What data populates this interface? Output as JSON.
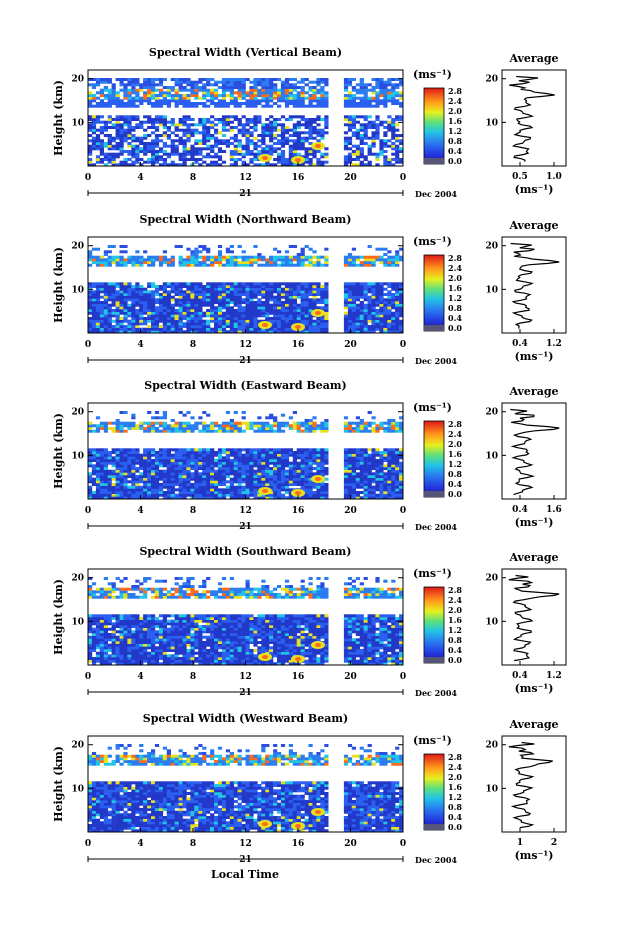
{
  "figure": {
    "xaxis_title": "Local Time",
    "date_label": "Dec 2004",
    "day_label": "21",
    "height_label": "Height (km)",
    "unit_label": "(ms⁻¹)",
    "avg_title": "Average",
    "avg_xlabel": "(ms⁻¹)"
  },
  "chart_data": [
    {
      "type": "heatmap",
      "title": "Spectral Width (Vertical Beam)",
      "xlabel": "Local Time",
      "ylabel": "Height (km)",
      "xticks": [
        "0",
        "4",
        "8",
        "12",
        "16",
        "20",
        "0"
      ],
      "yticks": [
        "20",
        "10"
      ],
      "colorbar_ticks": [
        "2.8",
        "2.4",
        "2.0",
        "1.6",
        "1.2",
        "0.8",
        "0.4",
        "0.0"
      ],
      "avg_xticks": [
        "0.5",
        "1.0"
      ]
    },
    {
      "type": "heatmap",
      "title": "Spectral Width (Northward Beam)",
      "xlabel": "Local Time",
      "ylabel": "Height (km)",
      "xticks": [
        "0",
        "4",
        "8",
        "12",
        "16",
        "20",
        "0"
      ],
      "yticks": [
        "20",
        "10"
      ],
      "colorbar_ticks": [
        "2.8",
        "2.4",
        "2.0",
        "1.6",
        "1.2",
        "0.8",
        "0.4",
        "0.0"
      ],
      "avg_xticks": [
        "0.4",
        "1.2"
      ]
    },
    {
      "type": "heatmap",
      "title": "Spectral Width (Eastward Beam)",
      "xlabel": "Local Time",
      "ylabel": "Height (km)",
      "xticks": [
        "0",
        "4",
        "8",
        "12",
        "16",
        "20",
        "0"
      ],
      "yticks": [
        "20",
        "10"
      ],
      "colorbar_ticks": [
        "2.8",
        "2.4",
        "2.0",
        "1.6",
        "1.2",
        "0.8",
        "0.4",
        "0.0"
      ],
      "avg_xticks": [
        "0.4",
        "1.6"
      ]
    },
    {
      "type": "heatmap",
      "title": "Spectral Width (Southward Beam)",
      "xlabel": "Local Time",
      "ylabel": "Height (km)",
      "xticks": [
        "0",
        "4",
        "8",
        "12",
        "16",
        "20",
        "0"
      ],
      "yticks": [
        "20",
        "10"
      ],
      "colorbar_ticks": [
        "2.8",
        "2.4",
        "2.0",
        "1.6",
        "1.2",
        "0.8",
        "0.4",
        "0.0"
      ],
      "avg_xticks": [
        "0.4",
        "1.2"
      ]
    },
    {
      "type": "heatmap",
      "title": "Spectral Width (Westward Beam)",
      "xlabel": "Local Time",
      "ylabel": "Height (km)",
      "xticks": [
        "0",
        "4",
        "8",
        "12",
        "16",
        "20",
        "0"
      ],
      "yticks": [
        "20",
        "10"
      ],
      "colorbar_ticks": [
        "2.8",
        "2.4",
        "2.0",
        "1.6",
        "1.2",
        "0.8",
        "0.4",
        "0.0"
      ],
      "avg_xticks": [
        "1",
        "2"
      ]
    }
  ]
}
